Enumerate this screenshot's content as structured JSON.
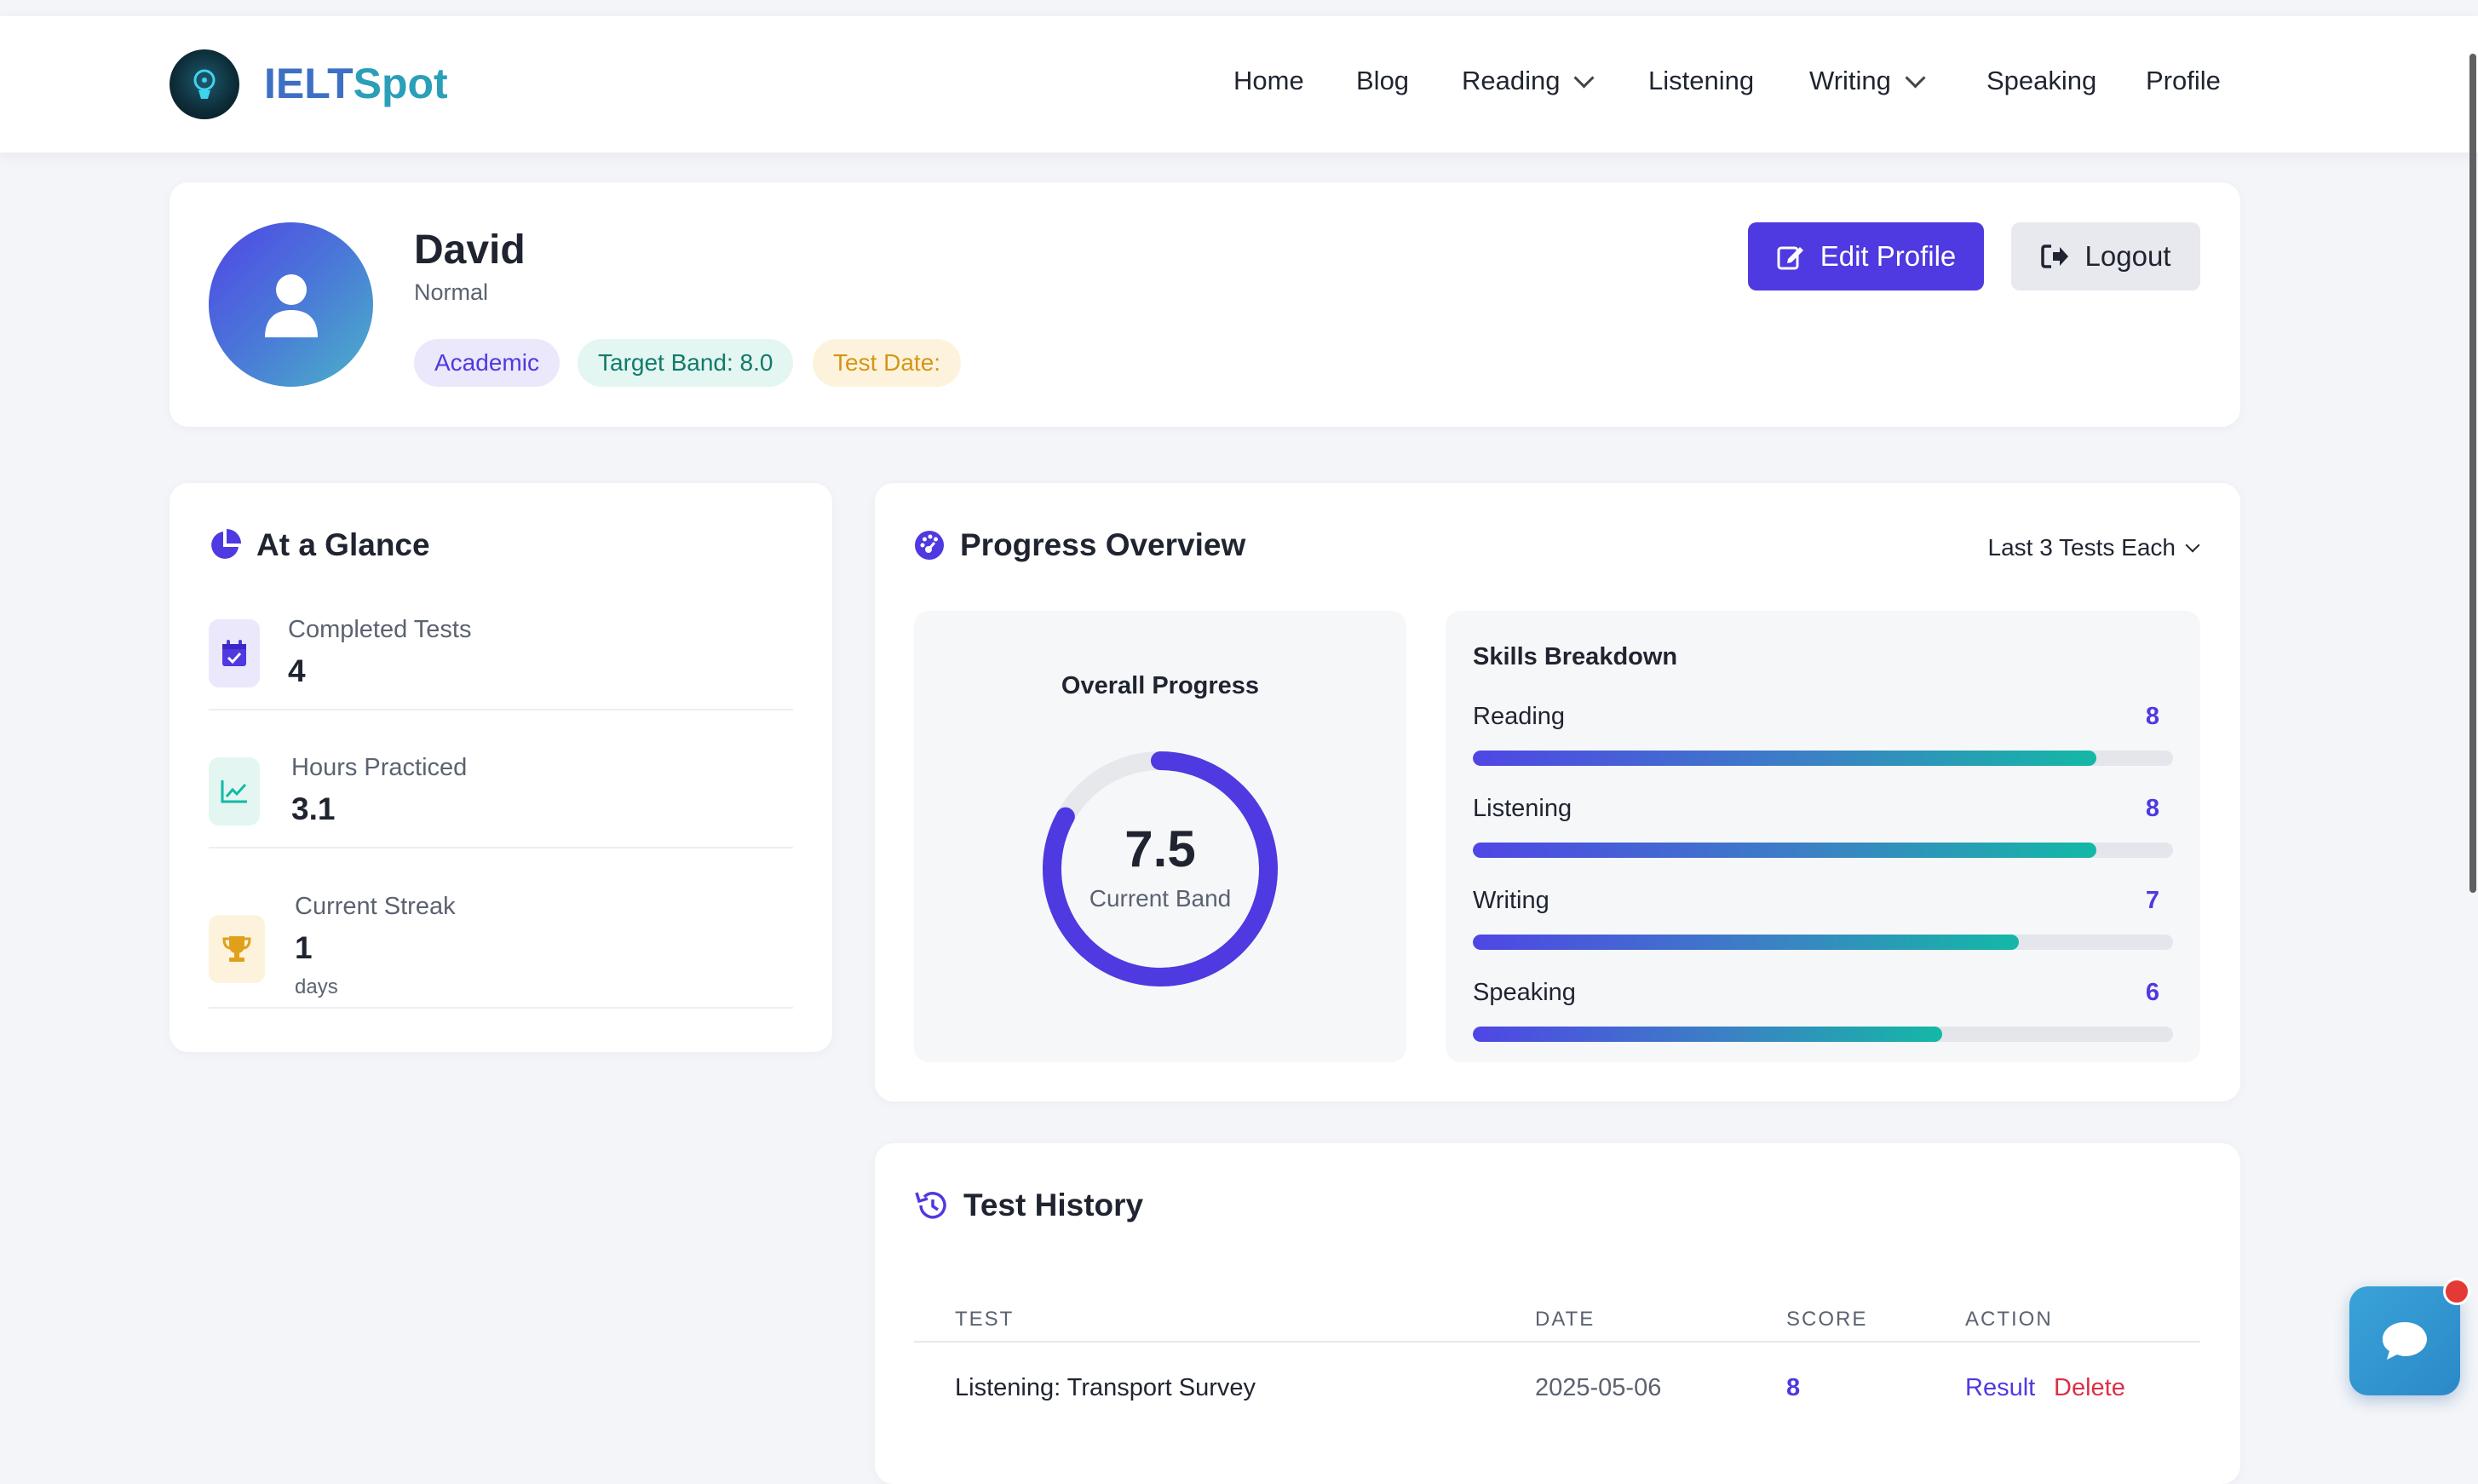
{
  "nav": {
    "brand_prefix": "IELT",
    "brand_suffix": "Spot",
    "items": [
      {
        "label": "Home"
      },
      {
        "label": "Blog"
      },
      {
        "label": "Reading",
        "has_dropdown": true
      },
      {
        "label": "Listening"
      },
      {
        "label": "Writing",
        "has_dropdown": true
      },
      {
        "label": "Speaking"
      },
      {
        "label": "Profile"
      }
    ]
  },
  "profile": {
    "name": "David",
    "role": "Normal",
    "tags": {
      "module": "Academic",
      "target": "Target Band: 8.0",
      "test_date": "Test Date:"
    },
    "edit_label": "Edit Profile",
    "logout_label": "Logout"
  },
  "glance": {
    "title": "At a Glance",
    "stats": [
      {
        "label": "Completed Tests",
        "value": "4",
        "icon": "calendar-check-icon"
      },
      {
        "label": "Hours Practiced",
        "value": "3.1",
        "icon": "line-chart-icon"
      },
      {
        "label": "Current Streak",
        "value": "1",
        "sub": "days",
        "icon": "trophy-icon"
      }
    ]
  },
  "progress": {
    "title": "Progress Overview",
    "filter": "Last 3 Tests Each",
    "overall_title": "Overall Progress",
    "overall_value": "7.5",
    "overall_label": "Current Band",
    "overall_fraction": 0.83,
    "skills_title": "Skills Breakdown",
    "skills": [
      {
        "name": "Reading",
        "value": "8",
        "fraction": 0.89
      },
      {
        "name": "Listening",
        "value": "8",
        "fraction": 0.89
      },
      {
        "name": "Writing",
        "value": "7",
        "fraction": 0.78
      },
      {
        "name": "Speaking",
        "value": "6",
        "fraction": 0.67
      }
    ]
  },
  "history": {
    "title": "Test History",
    "columns": [
      "TEST",
      "DATE",
      "SCORE",
      "ACTION"
    ],
    "rows": [
      {
        "test": "Listening: Transport Survey",
        "date": "2025-05-06",
        "score": "8",
        "result": "Result",
        "delete": "Delete"
      }
    ]
  },
  "colors": {
    "accent": "#4f39e0",
    "teal": "#14b8a6",
    "danger": "#dc2f45"
  }
}
